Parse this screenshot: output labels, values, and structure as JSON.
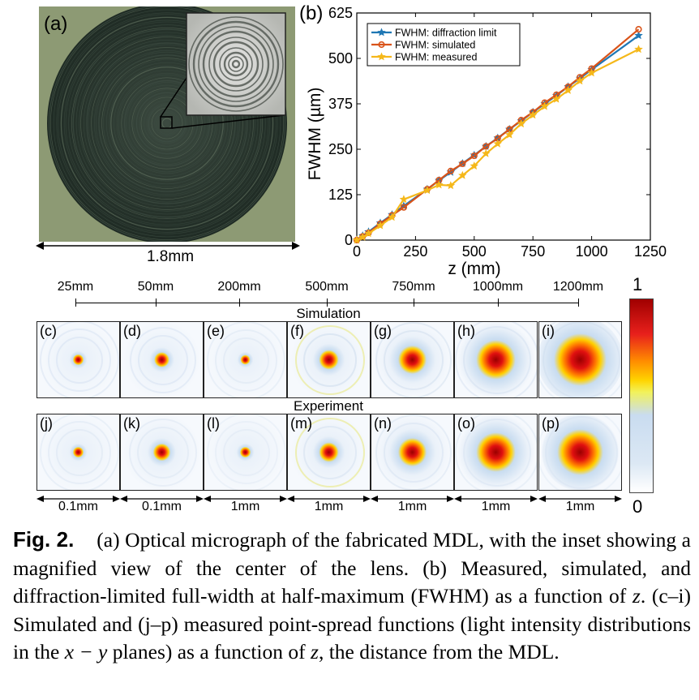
{
  "panel_a": {
    "label": "(a)",
    "scale_bar": "1.8mm",
    "colors": {
      "background": "#8d9a74",
      "lens": "#26332b",
      "ring": "#5e6e5c"
    }
  },
  "chart_data": {
    "type": "line",
    "panel_label": "(b)",
    "xlabel": "z (mm)",
    "ylabel": "FWHM (µm)",
    "xlim": [
      0,
      1250
    ],
    "ylim": [
      0,
      625
    ],
    "xticks": [
      0,
      250,
      500,
      750,
      1000,
      1250
    ],
    "yticks": [
      0,
      125,
      250,
      375,
      500,
      625
    ],
    "grid": false,
    "legend_position": "top-left",
    "x": [
      0,
      25,
      50,
      100,
      150,
      200,
      300,
      350,
      400,
      450,
      500,
      550,
      600,
      650,
      700,
      750,
      800,
      850,
      900,
      950,
      1000,
      1200
    ],
    "series": [
      {
        "name": "FWHM: diffraction limit",
        "color": "#1f77b4",
        "marker": "star",
        "values": [
          0,
          12,
          23,
          47,
          70,
          94,
          140,
          164,
          187,
          211,
          234,
          258,
          281,
          305,
          328,
          352,
          375,
          398,
          422,
          445,
          469,
          563
        ]
      },
      {
        "name": "FWHM: simulated",
        "color": "#d95319",
        "marker": "circle",
        "values": [
          0,
          10,
          20,
          45,
          68,
          90,
          140,
          165,
          190,
          210,
          232,
          258,
          280,
          305,
          330,
          352,
          378,
          400,
          422,
          448,
          472,
          580
        ]
      },
      {
        "name": "FWHM: measured",
        "color": "#f5b81a",
        "marker": "star",
        "values": [
          0,
          8,
          18,
          40,
          63,
          112,
          137,
          152,
          150,
          178,
          204,
          238,
          265,
          290,
          320,
          344,
          368,
          388,
          412,
          438,
          460,
          525
        ]
      }
    ]
  },
  "psf": {
    "distances": [
      "25mm",
      "50mm",
      "200mm",
      "500mm",
      "750mm",
      "1000mm",
      "1200mm"
    ],
    "simulation_title": "Simulation",
    "experiment_title": "Experiment",
    "simulation_labels": [
      "(c)",
      "(d)",
      "(e)",
      "(f)",
      "(g)",
      "(h)",
      "(i)"
    ],
    "experiment_labels": [
      "(j)",
      "(k)",
      "(l)",
      "(m)",
      "(n)",
      "(o)",
      "(p)"
    ],
    "scale_bars": [
      "0.1mm",
      "0.1mm",
      "1mm",
      "1mm",
      "1mm",
      "1mm",
      "1mm"
    ],
    "colorbar_max": "1",
    "colorbar_min": "0"
  },
  "caption": {
    "fig_label": "Fig. 2.",
    "text": "(a) Optical micrograph of the fabricated MDL, with the inset showing a magnified view of the center of the lens. (b) Measured, simulated, and diffraction-limited full-width at half-maximum (FWHM) as a function of ",
    "z1": "z",
    "text2": ". (c–i) Simulated and (j–p) measured point-spread functions (light intensity distributions in the ",
    "xy": "x − y",
    "text3": " planes) as a function of ",
    "z2": "z",
    "text4": ", the distance from the MDL."
  }
}
